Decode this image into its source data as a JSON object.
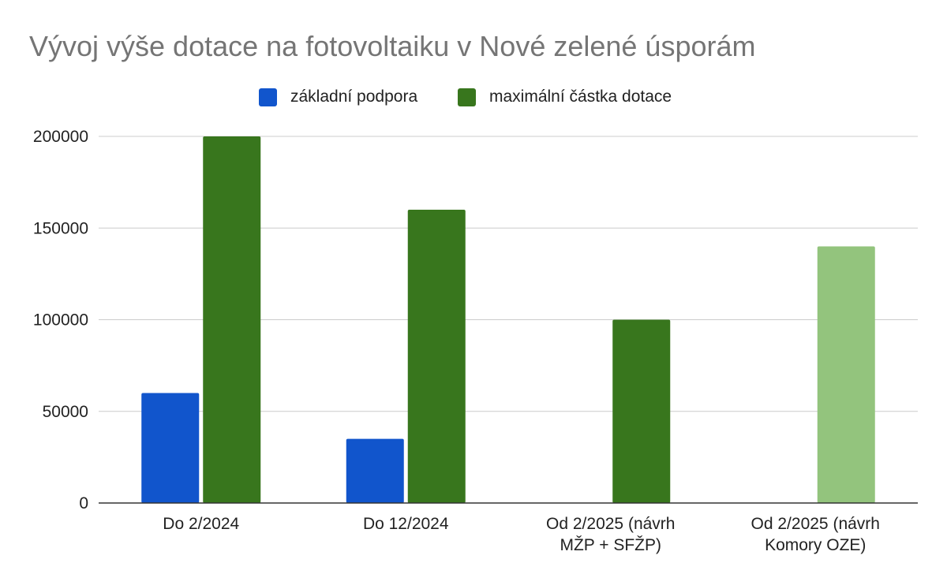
{
  "chart_data": {
    "type": "bar",
    "title": "Vývoj výše dotace na fotovoltaiku v Nové zelené úsporám",
    "categories": [
      [
        "Do 2/2024"
      ],
      [
        "Do 12/2024"
      ],
      [
        "Od 2/2025 (návrh",
        "MŽP + SFŽP)"
      ],
      [
        "Od 2/2025 (návrh",
        "Komory OZE)"
      ]
    ],
    "series": [
      {
        "name": "základní podpora",
        "color": "#1155cc",
        "values": [
          60000,
          35000,
          null,
          null
        ]
      },
      {
        "name": "maximální částka dotace",
        "color": "#38761d",
        "values": [
          200000,
          160000,
          100000,
          140000
        ]
      }
    ],
    "highlight": {
      "series": 1,
      "index": 3,
      "color": "#93c47d"
    },
    "ylim": [
      0,
      200000
    ],
    "yticks": [
      0,
      50000,
      100000,
      150000,
      200000
    ],
    "grid": true,
    "legend_position": "top-center",
    "xlabel": "",
    "ylabel": ""
  }
}
